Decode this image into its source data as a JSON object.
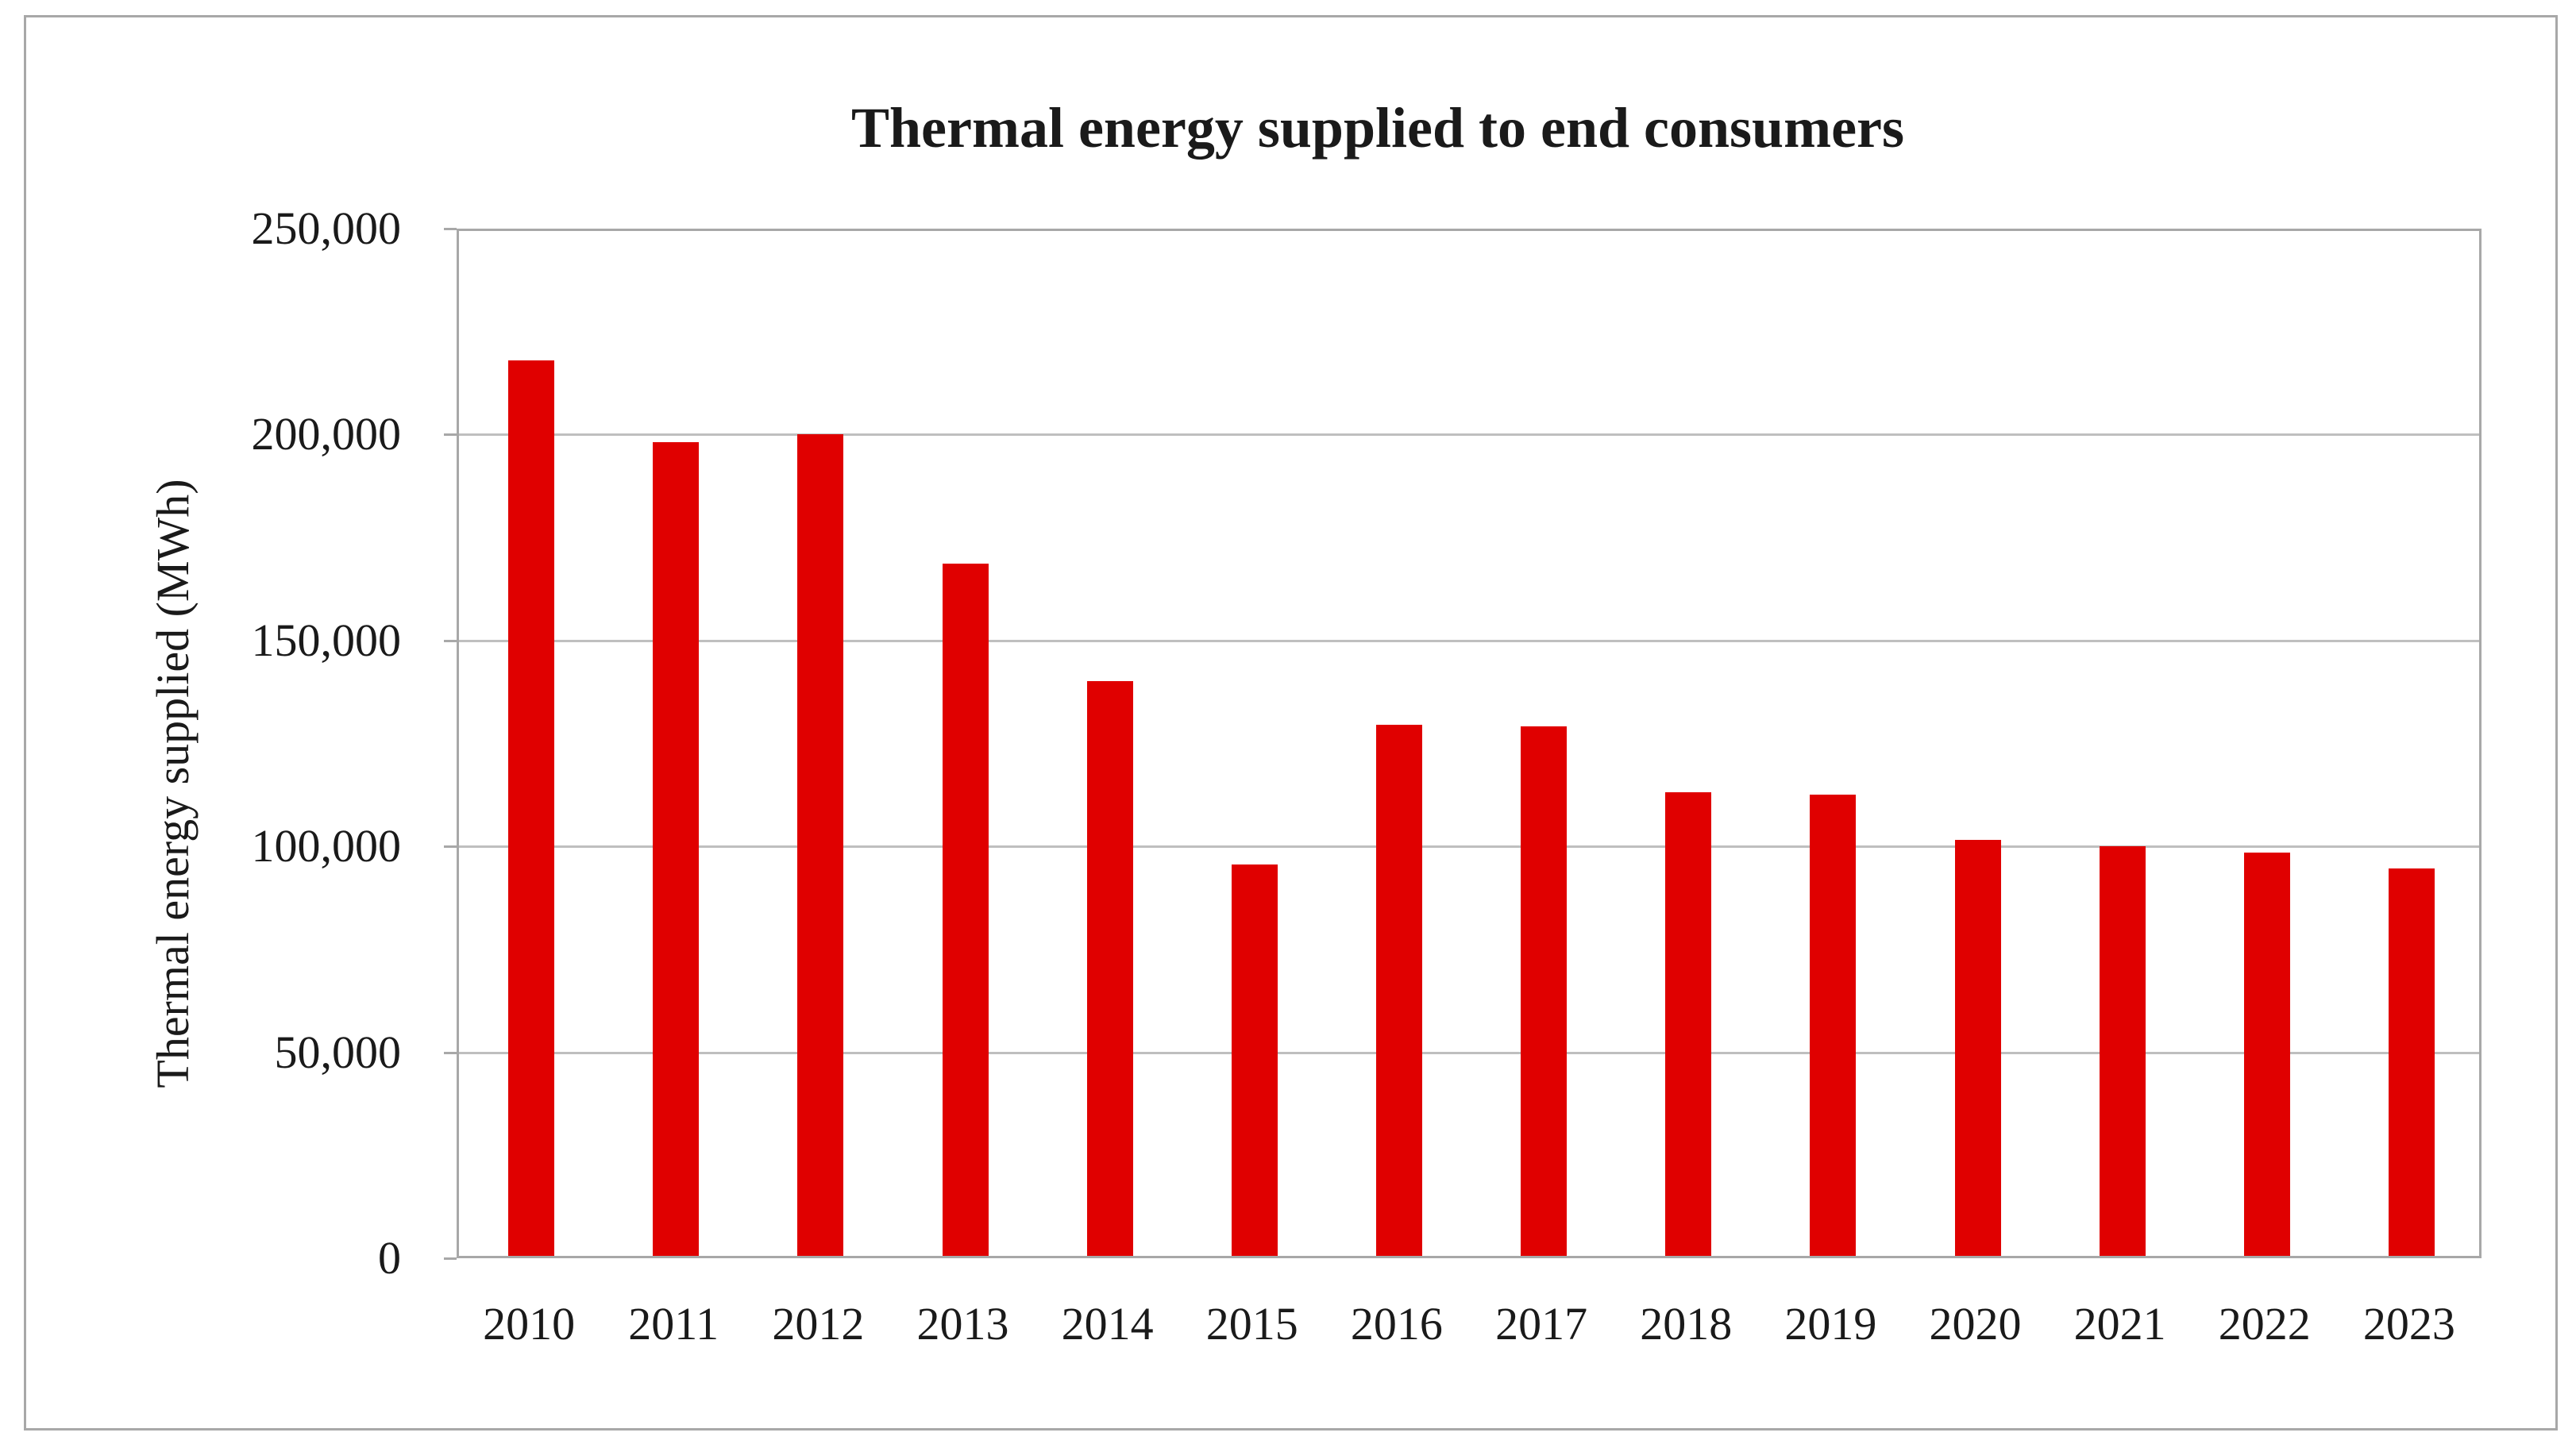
{
  "figure": {
    "title": "Thermal energy supplied to end consumers"
  },
  "y_axis": {
    "title": "Thermal energy supplied (MWh)",
    "tick_labels_top_down": [
      "250,000",
      "200,000",
      "150,000",
      "100,000",
      "50,000",
      "0"
    ]
  },
  "x_axis": {
    "tick_labels": [
      "2010",
      "2011",
      "2012",
      "2013",
      "2014",
      "2015",
      "2016",
      "2017",
      "2018",
      "2019",
      "2020",
      "2021",
      "2022",
      "2023"
    ]
  },
  "chart_data": {
    "type": "bar",
    "title": "Thermal energy supplied to end consumers",
    "categories": [
      "2010",
      "2011",
      "2012",
      "2013",
      "2014",
      "2015",
      "2016",
      "2017",
      "2018",
      "2019",
      "2020",
      "2021",
      "2022",
      "2023"
    ],
    "values": [
      217500,
      197500,
      199500,
      168000,
      139500,
      95000,
      129000,
      128500,
      112500,
      112000,
      101000,
      99500,
      98000,
      94000
    ],
    "xlabel": "",
    "ylabel": "Thermal energy supplied (MWh)",
    "ylim": [
      0,
      250000
    ],
    "ytick_interval": 50000,
    "ytick_labels": [
      "0",
      "50,000",
      "100,000",
      "150,000",
      "200,000",
      "250,000"
    ],
    "grid": "horizontal",
    "legend": "none",
    "series_name": "Thermal energy supplied"
  },
  "colors": {
    "bar": "#e00000",
    "gridline": "#bfbfbf",
    "frame": "#a8a8a8",
    "text": "#1a1a1a",
    "background": "#ffffff"
  }
}
